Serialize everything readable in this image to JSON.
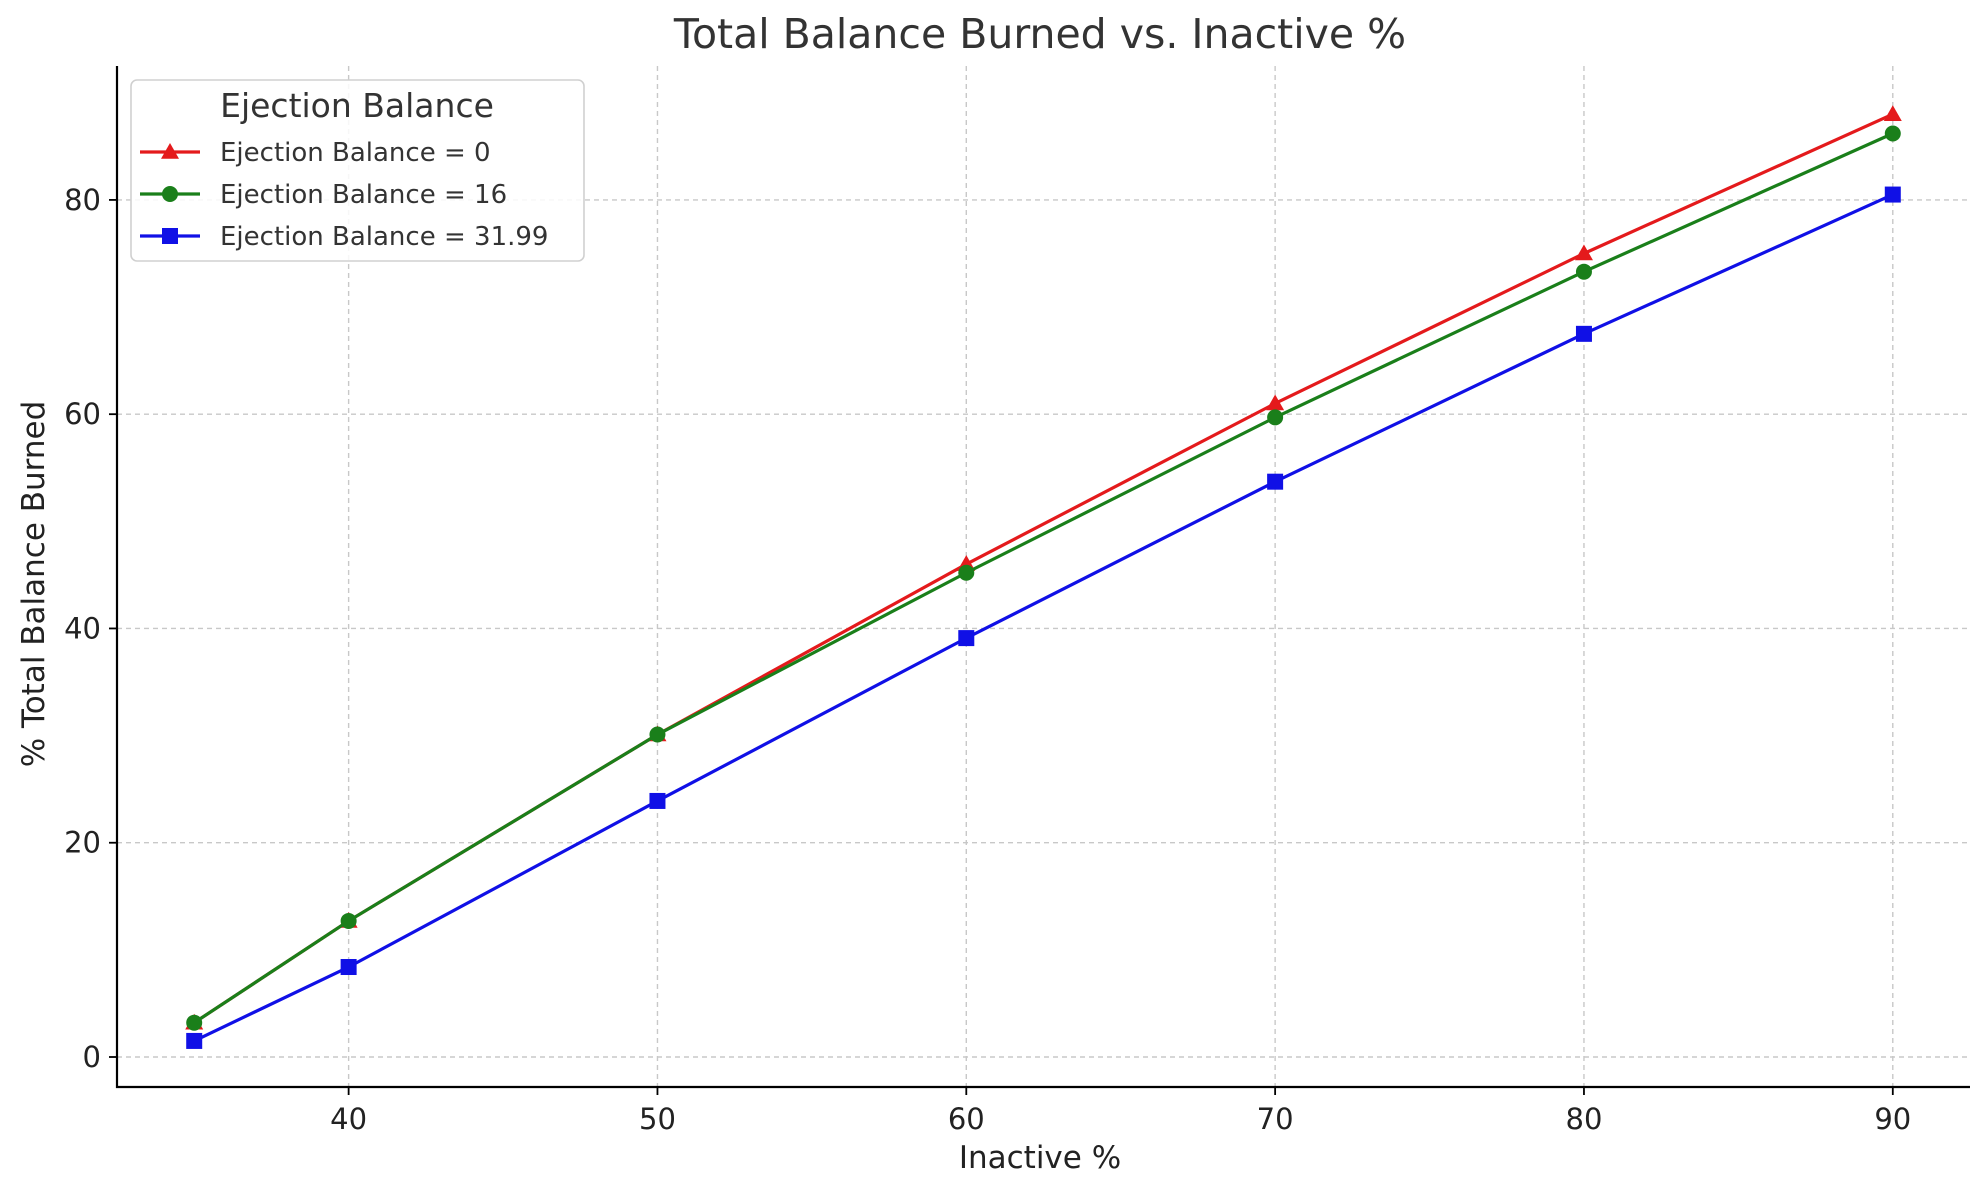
{
  "chart_data": {
    "type": "line",
    "title": "Total Balance Burned vs. Inactive %",
    "xlabel": "Inactive %",
    "ylabel": "% Total Balance Burned",
    "x": [
      35,
      40,
      50,
      60,
      70,
      80,
      90
    ],
    "xlim": [
      32.5,
      92.5
    ],
    "ylim": [
      -2.8,
      92.5
    ],
    "xticks": [
      40,
      50,
      60,
      70,
      80,
      90
    ],
    "yticks": [
      0,
      20,
      40,
      60,
      80
    ],
    "grid": true,
    "legend": {
      "title": "Ejection Balance",
      "placement": "top-left"
    },
    "series": [
      {
        "name": "Ejection Balance = 0",
        "color": "#e41a1c",
        "marker": "triangle",
        "values": [
          3.2,
          12.7,
          30.1,
          46.0,
          61.0,
          75.0,
          88.0
        ]
      },
      {
        "name": "Ejection Balance = 16",
        "color": "#1a7f1a",
        "marker": "circle",
        "values": [
          3.2,
          12.7,
          30.1,
          45.2,
          59.7,
          73.3,
          86.2
        ]
      },
      {
        "name": "Ejection Balance = 31.99",
        "color": "#1010e6",
        "marker": "square",
        "values": [
          1.5,
          8.4,
          23.9,
          39.1,
          53.7,
          67.5,
          80.5
        ]
      }
    ]
  }
}
